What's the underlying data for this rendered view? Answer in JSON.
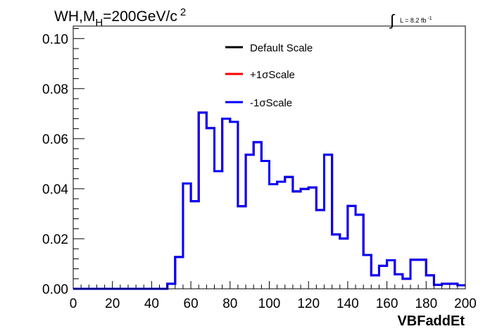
{
  "chart_data": {
    "type": "line",
    "title": "WH,M",
    "title_sub": "H",
    "title_rest": "=200GeV/c",
    "title_sup": "2",
    "lumi": {
      "integral": "∫",
      "label": "L = 8.2 fb",
      "sup": "-1"
    },
    "xlabel": "VBFaddEt",
    "ylabel": "",
    "xlim": [
      0,
      200
    ],
    "ylim": [
      0,
      0.105
    ],
    "grid": false,
    "legend_position": "top-center",
    "x_ticks": [
      0,
      20,
      40,
      60,
      80,
      100,
      120,
      140,
      160,
      180,
      200
    ],
    "x_tick_labels": [
      "0",
      "20",
      "40",
      "60",
      "80",
      "100",
      "120",
      "140",
      "160",
      "180",
      "200"
    ],
    "y_ticks": [
      0,
      0.02,
      0.04,
      0.06,
      0.08,
      0.1
    ],
    "y_tick_labels": [
      "0.00",
      "0.02",
      "0.04",
      "0.06",
      "0.08",
      "0.10"
    ],
    "bin_edges": [
      0,
      4,
      8,
      12,
      16,
      20,
      24,
      28,
      32,
      36,
      40,
      44,
      48,
      52,
      56,
      60,
      64,
      68,
      72,
      76,
      80,
      84,
      88,
      92,
      96,
      100,
      104,
      108,
      112,
      116,
      120,
      124,
      128,
      132,
      136,
      140,
      144,
      148,
      152,
      156,
      160,
      164,
      168,
      172,
      176,
      180,
      184,
      188,
      192,
      196,
      200
    ],
    "series": [
      {
        "name": "Default Scale",
        "color": "#000000",
        "values": [
          0,
          0,
          0,
          0,
          0,
          0,
          0,
          0,
          0,
          0,
          0,
          0,
          0.002,
          0.0127,
          0.0421,
          0.035,
          0.0704,
          0.0642,
          0.047,
          0.068,
          0.0667,
          0.033,
          0.0536,
          0.0586,
          0.0511,
          0.0418,
          0.0428,
          0.0447,
          0.0389,
          0.0399,
          0.0405,
          0.0315,
          0.0536,
          0.0217,
          0.0201,
          0.0331,
          0.0296,
          0.0135,
          0.0054,
          0.0092,
          0.0114,
          0.0058,
          0.004,
          0.0116,
          0.0116,
          0.0054,
          0.0016,
          0.002,
          0.002,
          0.0014
        ]
      },
      {
        "name": "+1σScale",
        "color": "#ff0000",
        "values": [
          0,
          0,
          0,
          0,
          0,
          0,
          0,
          0,
          0,
          0,
          0,
          0,
          0.002,
          0.0127,
          0.0421,
          0.035,
          0.0704,
          0.0642,
          0.047,
          0.068,
          0.0667,
          0.033,
          0.0536,
          0.0586,
          0.0511,
          0.0418,
          0.0428,
          0.0447,
          0.0389,
          0.0399,
          0.0405,
          0.0315,
          0.0536,
          0.0217,
          0.0201,
          0.0331,
          0.0296,
          0.0135,
          0.0054,
          0.0092,
          0.0114,
          0.0058,
          0.004,
          0.0116,
          0.0116,
          0.0054,
          0.0016,
          0.002,
          0.002,
          0.0014
        ]
      },
      {
        "name": "-1σScale",
        "color": "#0000ff",
        "values": [
          0,
          0,
          0,
          0,
          0,
          0,
          0,
          0,
          0,
          0,
          0,
          0,
          0.002,
          0.0127,
          0.0421,
          0.035,
          0.0704,
          0.0642,
          0.047,
          0.068,
          0.0667,
          0.033,
          0.0536,
          0.0586,
          0.0511,
          0.0418,
          0.0428,
          0.0447,
          0.0389,
          0.0399,
          0.0405,
          0.0315,
          0.0536,
          0.0217,
          0.0201,
          0.0331,
          0.0296,
          0.0135,
          0.0054,
          0.0092,
          0.0114,
          0.0058,
          0.004,
          0.0116,
          0.0116,
          0.0054,
          0.0016,
          0.002,
          0.002,
          0.0014
        ]
      }
    ]
  }
}
